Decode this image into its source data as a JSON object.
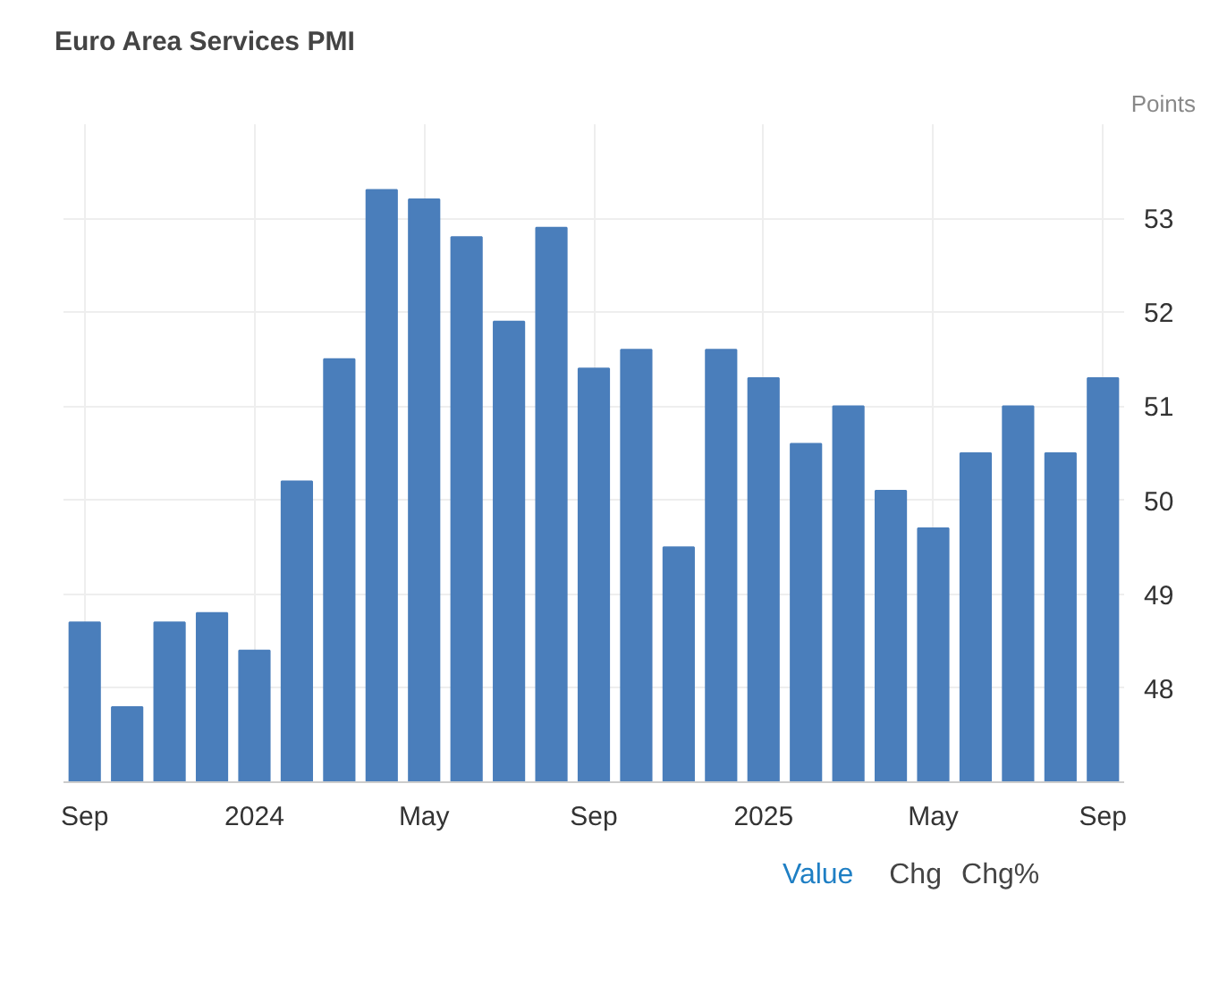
{
  "chart_data": {
    "type": "bar",
    "title": "Euro Area Services PMI",
    "ylabel": "Points",
    "categories": [
      "Sep",
      null,
      null,
      null,
      "2024",
      null,
      null,
      null,
      "May",
      null,
      null,
      null,
      "Sep",
      null,
      null,
      null,
      "2025",
      null,
      null,
      null,
      "May",
      null,
      null,
      null,
      "Sep"
    ],
    "values": [
      48.7,
      47.8,
      48.7,
      48.8,
      48.4,
      50.2,
      51.5,
      53.3,
      53.2,
      52.8,
      51.9,
      52.9,
      51.4,
      51.6,
      49.5,
      51.6,
      51.3,
      50.6,
      51.0,
      50.1,
      49.7,
      50.5,
      51.0,
      50.5,
      51.3
    ],
    "color": "#4a7ebb",
    "ylim": [
      47,
      54
    ],
    "yticks": [
      48,
      49,
      50,
      51,
      52,
      53
    ],
    "grid": true,
    "annotations": [
      "Value",
      "Chg",
      "Chg%"
    ]
  }
}
